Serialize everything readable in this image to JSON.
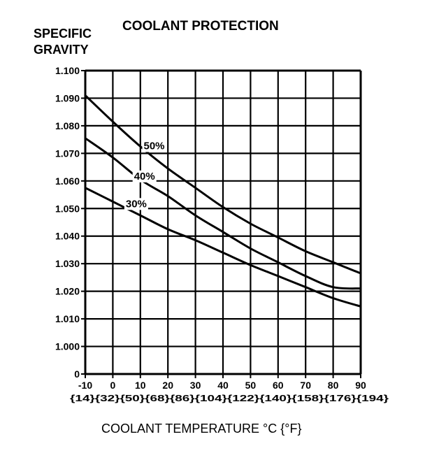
{
  "chart_data": {
    "type": "line",
    "title": "COOLANT PROTECTION",
    "ylabel": [
      "SPECIFIC",
      "GRAVITY"
    ],
    "xlabel": "COOLANT TEMPERATURE °C {°F}",
    "x_ticks_c": [
      "-10",
      "0",
      "10",
      "20",
      "30",
      "40",
      "50",
      "60",
      "70",
      "80",
      "90"
    ],
    "x_ticks_f": [
      "{14}",
      "{32}",
      "{50}",
      "{68}",
      "{86}",
      "{104}",
      "{122}",
      "{140}",
      "{158}",
      "{176}",
      "{194}"
    ],
    "xlim": [
      -10,
      90
    ],
    "y_ticks": [
      "1.100",
      "1.090",
      "1.080",
      "1.070",
      "1.060",
      "1.050",
      "1.040",
      "1.030",
      "1.020",
      "1.010",
      "1.000",
      "0"
    ],
    "ylim": [
      1.0,
      1.1
    ],
    "y_axis_break": "0 at bottom, 1.000 one grid step above",
    "grid": true,
    "series": [
      {
        "name": "50%",
        "label_at": [
          15,
          1.0715
        ],
        "x": [
          -10,
          0,
          10,
          20,
          30,
          40,
          50,
          60,
          70,
          80,
          90
        ],
        "y": [
          1.091,
          1.0815,
          1.0725,
          1.0645,
          1.0575,
          1.0505,
          1.0445,
          1.0395,
          1.0345,
          1.0305,
          1.0265
        ]
      },
      {
        "name": "40%",
        "label_at": [
          11.5,
          1.0605
        ],
        "x": [
          -10,
          0,
          10,
          20,
          30,
          40,
          50,
          60,
          70,
          80,
          90
        ],
        "y": [
          1.0755,
          1.0685,
          1.0605,
          1.0545,
          1.0475,
          1.0415,
          1.0355,
          1.0305,
          1.0255,
          1.0215,
          1.021
        ]
      },
      {
        "name": "30%",
        "label_at": [
          8.5,
          1.0505
        ],
        "x": [
          -10,
          0,
          10,
          20,
          30,
          40,
          50,
          60,
          70,
          80,
          90
        ],
        "y": [
          1.0575,
          1.0525,
          1.0475,
          1.0425,
          1.0385,
          1.034,
          1.0295,
          1.0255,
          1.0215,
          1.0175,
          1.0145
        ]
      }
    ]
  }
}
